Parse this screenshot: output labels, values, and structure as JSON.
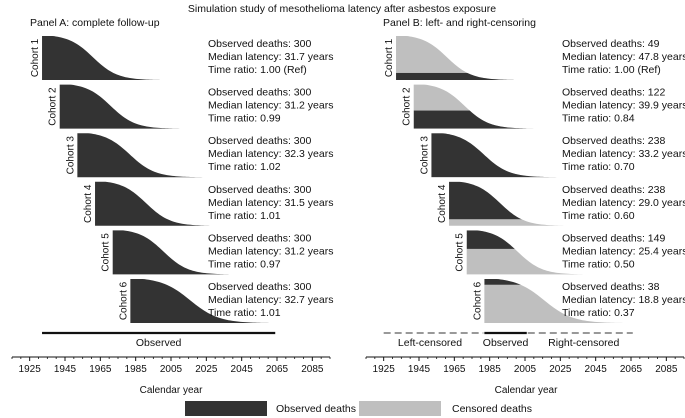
{
  "chart_data": {
    "type": "area",
    "title": "Simulation study of mesothelioma latency after asbestos exposure",
    "xlabel": "Calendar year",
    "x_ticks": [
      1925,
      1945,
      1965,
      1985,
      2005,
      2025,
      2045,
      2065,
      2085
    ],
    "x_range": [
      1915,
      2095
    ],
    "legend": [
      {
        "label": "Observed deaths",
        "color": "#333333"
      },
      {
        "label": "Censored deaths",
        "color": "#bfbfbf"
      }
    ],
    "panels": [
      {
        "title": "Panel A: complete follow-up",
        "observation_span_label": "Observed",
        "observation_span": [
          1932,
          2064
        ],
        "cohorts": [
          {
            "label": "Cohort 1",
            "start_year": 1932,
            "end_year": 2001,
            "deaths_label": "Observed deaths: 300",
            "latency_label": "Median latency: 31.7 years",
            "ratio_label": "Time ratio: 1.00 (Ref)"
          },
          {
            "label": "Cohort 2",
            "start_year": 1942,
            "end_year": 2011,
            "deaths_label": "Observed deaths: 300",
            "latency_label": "Median latency: 31.2 years",
            "ratio_label": "Time ratio: 0.99"
          },
          {
            "label": "Cohort 3",
            "start_year": 1952,
            "end_year": 2023,
            "deaths_label": "Observed deaths: 300",
            "latency_label": "Median latency: 32.3 years",
            "ratio_label": "Time ratio: 1.02"
          },
          {
            "label": "Cohort 4",
            "start_year": 1962,
            "end_year": 2031,
            "deaths_label": "Observed deaths: 300",
            "latency_label": "Median latency: 31.5 years",
            "ratio_label": "Time ratio: 1.01"
          },
          {
            "label": "Cohort 5",
            "start_year": 1972,
            "end_year": 2041,
            "deaths_label": "Observed deaths: 300",
            "latency_label": "Median latency: 31.2 years",
            "ratio_label": "Time ratio: 0.97"
          },
          {
            "label": "Cohort 6",
            "start_year": 1982,
            "end_year": 2063,
            "deaths_label": "Observed deaths: 300",
            "latency_label": "Median latency: 32.7 years",
            "ratio_label": "Time ratio: 1.01"
          }
        ]
      },
      {
        "title": "Panel B: left- and right-censoring",
        "observation_span": [
          1982,
          2006
        ],
        "left_censored_label": "Left-censored",
        "observed_label": "Observed",
        "right_censored_label": "Right-censored",
        "cohorts": [
          {
            "label": "Cohort 1",
            "start_year": 1932,
            "end_year": 2001,
            "observed_fraction": 0.16,
            "observed_position": "bottom",
            "deaths_label": "Observed deaths: 49",
            "latency_label": "Median latency: 47.8 years",
            "ratio_label": "Time ratio: 1.00 (Ref)"
          },
          {
            "label": "Cohort 2",
            "start_year": 1942,
            "end_year": 2011,
            "observed_fraction": 0.41,
            "observed_position": "bottom",
            "deaths_label": "Observed deaths: 122",
            "latency_label": "Median latency: 39.9 years",
            "ratio_label": "Time ratio: 0.84"
          },
          {
            "label": "Cohort 3",
            "start_year": 1952,
            "end_year": 2023,
            "observed_fraction": 1.0,
            "observed_position": "bottom",
            "deaths_label": "Observed deaths: 238",
            "latency_label": "Median latency: 33.2 years",
            "ratio_label": "Time ratio: 0.70"
          },
          {
            "label": "Cohort 4",
            "start_year": 1962,
            "end_year": 2031,
            "observed_fraction": 0.85,
            "observed_position": "top",
            "deaths_label": "Observed deaths: 238",
            "latency_label": "Median latency: 29.0 years",
            "ratio_label": "Time ratio: 0.60"
          },
          {
            "label": "Cohort 5",
            "start_year": 1972,
            "end_year": 2041,
            "observed_fraction": 0.42,
            "observed_position": "top",
            "deaths_label": "Observed deaths: 149",
            "latency_label": "Median latency: 25.4 years",
            "ratio_label": "Time ratio: 0.50"
          },
          {
            "label": "Cohort 6",
            "start_year": 1982,
            "end_year": 2063,
            "observed_fraction": 0.13,
            "observed_position": "top",
            "deaths_label": "Observed deaths: 38",
            "latency_label": "Median latency: 18.8 years",
            "ratio_label": "Time ratio: 0.37"
          }
        ]
      }
    ]
  }
}
